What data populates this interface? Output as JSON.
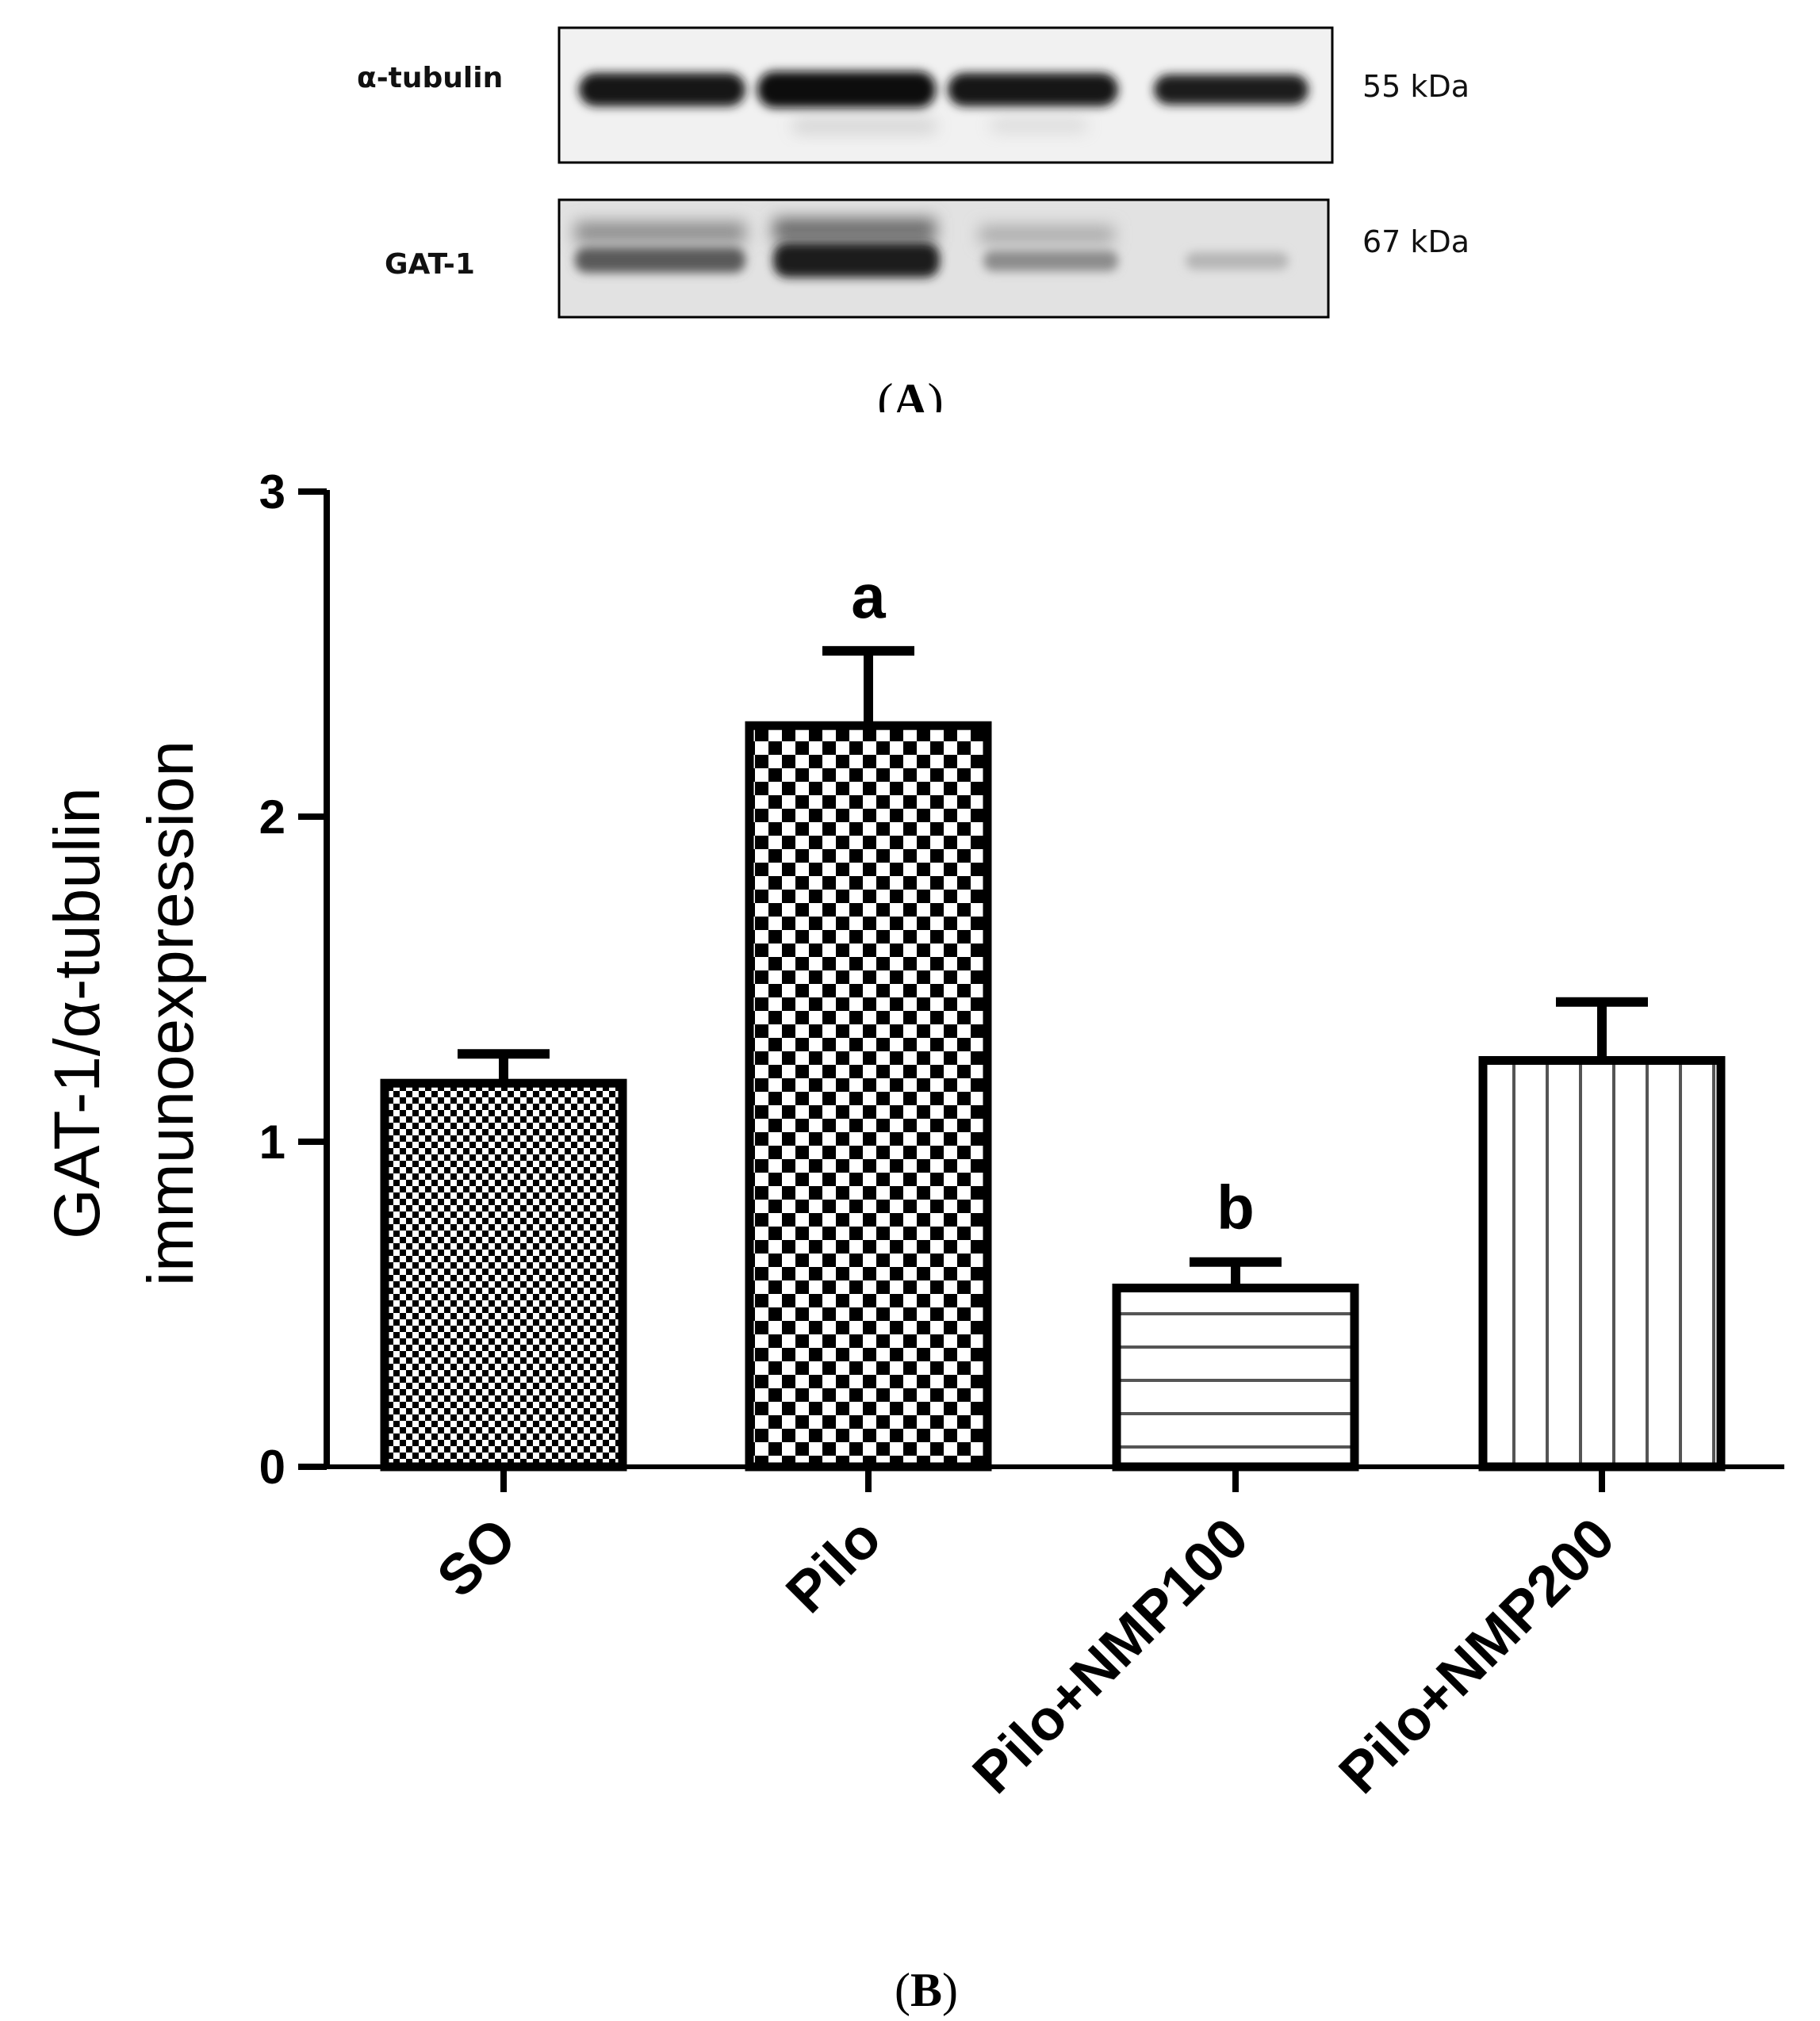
{
  "panel_a": {
    "rows": [
      {
        "label": "α-tubulin",
        "mw": "55 kDa"
      },
      {
        "label": "GAT-1",
        "mw": "67 kDa"
      }
    ],
    "caption_open": "(",
    "caption_letter": "A",
    "caption_close": ")"
  },
  "panel_b": {
    "caption_open": "(",
    "caption_letter": "B",
    "caption_close": ")"
  },
  "chart_data": {
    "type": "bar",
    "categories": [
      "SO",
      "Pilo",
      "Pilo+NMP100",
      "Pilo+NMP200"
    ],
    "values": [
      1.18,
      2.28,
      0.55,
      1.25
    ],
    "errors": [
      0.09,
      0.23,
      0.08,
      0.18
    ],
    "annotations": [
      "",
      "a",
      "b",
      ""
    ],
    "patterns": [
      "small-checker",
      "large-checker",
      "horizontal-stripes",
      "vertical-stripes"
    ],
    "ylabel_line1": "GAT-1/α-tubulin",
    "ylabel_line2": "immunoexpression",
    "xlabel": "",
    "ylim": [
      0,
      3
    ],
    "yticks": [
      "0",
      "1",
      "2",
      "3"
    ],
    "grid": false,
    "legend": false
  }
}
